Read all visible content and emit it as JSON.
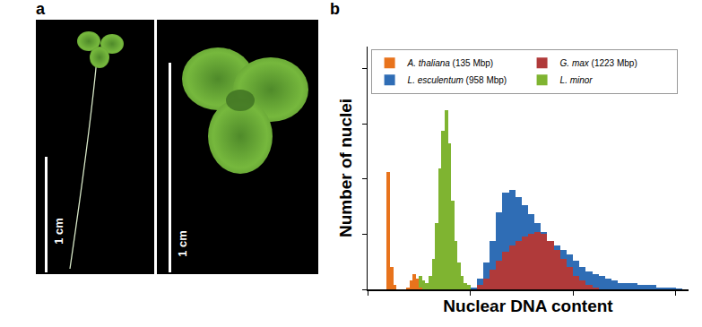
{
  "panel_labels": [
    "a",
    "b"
  ],
  "photo": {
    "scale_bar_labels": [
      "1 cm",
      "1 cm"
    ]
  },
  "chart_data": {
    "type": "histogram",
    "x_label": "Nuclear DNA content",
    "y_label": "Number of nuclei",
    "xlim": [
      0,
      100
    ],
    "ylim": [
      0,
      110
    ],
    "xticks": [
      0,
      32,
      64,
      96
    ],
    "yticks": [
      0,
      25,
      50,
      75,
      100
    ],
    "tick_labels": false,
    "grid": false,
    "legend": "upper left",
    "series": [
      {
        "name": "A. thaliana (135 Mbp)",
        "color": "#e8731c",
        "bins": [
          5,
          6,
          7,
          8,
          9,
          10,
          11,
          12,
          13,
          14,
          15,
          16,
          17,
          18,
          19,
          20
        ],
        "values": [
          0,
          53,
          10,
          2,
          0,
          0,
          0,
          1,
          4,
          7,
          5,
          1,
          0,
          0,
          0
        ]
      },
      {
        "name": "G. max (1223 Mbp)",
        "color": "#b03a3a",
        "bins": [
          34,
          36,
          38,
          40,
          42,
          44,
          46,
          48,
          50,
          52,
          54,
          56,
          58,
          60,
          62,
          64,
          66,
          68,
          70,
          72
        ],
        "values": [
          2,
          5,
          9,
          13,
          17,
          20,
          22,
          24,
          25,
          26,
          25,
          22,
          18,
          14,
          10,
          6,
          4,
          2,
          1
        ]
      },
      {
        "name": "L. esculentum (958 Mbp)",
        "color": "#2f6db5",
        "bins": [
          32,
          34,
          36,
          38,
          40,
          42,
          44,
          46,
          48,
          50,
          52,
          54,
          56,
          58,
          60,
          62,
          64,
          66,
          68,
          70,
          72,
          74,
          76,
          78,
          80,
          82,
          84,
          86,
          88,
          90,
          92,
          94,
          96,
          98
        ],
        "values": [
          1,
          5,
          12,
          22,
          35,
          44,
          45,
          42,
          38,
          34,
          30,
          26,
          22,
          20,
          18,
          16,
          13,
          10,
          8,
          7,
          6,
          5,
          4,
          3,
          3,
          3,
          2,
          2,
          2,
          1,
          1,
          1,
          0.5
        ]
      },
      {
        "name": "L. minor",
        "color": "#7fb431",
        "bins": [
          15,
          16,
          17,
          18,
          19,
          20,
          21,
          22,
          23,
          24,
          25,
          26,
          27,
          28,
          29,
          30,
          31,
          32,
          33,
          34
        ],
        "values": [
          1,
          6,
          4,
          3,
          6,
          14,
          30,
          55,
          72,
          81,
          66,
          40,
          22,
          12,
          6,
          3,
          2,
          1,
          0
        ]
      }
    ]
  }
}
